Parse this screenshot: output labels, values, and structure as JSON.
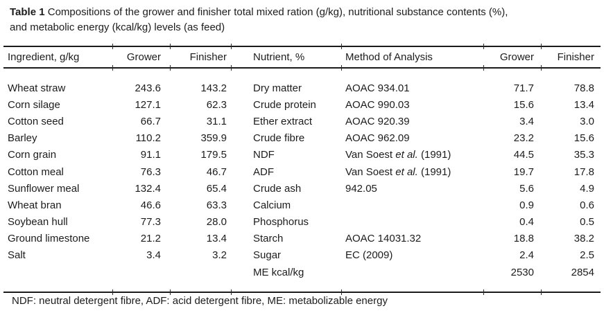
{
  "caption": {
    "label": "Table 1",
    "line1": "Compositions of the grower and finisher total mixed ration (g/kg), nutritional substance contents (%),",
    "line2": "and metabolic energy (kcal/kg) levels (as feed)"
  },
  "table": {
    "columns": [
      "Ingredient, g/kg",
      "Grower",
      "Finisher",
      "Nutrient, %",
      "Method of Analysis",
      "Grower",
      "Finisher"
    ],
    "column_keys": [
      "ingredient",
      "ingredient-grower",
      "ingredient-finisher",
      "nutrient",
      "method-of-analysis",
      "nutrient-grower",
      "nutrient-finisher"
    ],
    "rows": [
      [
        "Wheat straw",
        "243.6",
        "143.2",
        "Dry matter",
        "AOAC 934.01",
        "71.7",
        "78.8"
      ],
      [
        "Corn silage",
        "127.1",
        "62.3",
        "Crude protein",
        "AOAC 990.03",
        "15.6",
        "13.4"
      ],
      [
        "Cotton seed",
        "66.7",
        "31.1",
        "Ether extract",
        "AOAC 920.39",
        "3.4",
        "3.0"
      ],
      [
        "Barley",
        "110.2",
        "359.9",
        "Crude fibre",
        "AOAC 962.09",
        "23.2",
        "15.6"
      ],
      [
        "Corn grain",
        "91.1",
        "179.5",
        "NDF",
        "Van Soest *et al.* (1991)",
        "44.5",
        "35.3"
      ],
      [
        "Cotton meal",
        "76.3",
        "46.7",
        "ADF",
        "Van Soest *et al.* (1991)",
        "19.7",
        "17.8"
      ],
      [
        "Sunflower meal",
        "132.4",
        "65.4",
        "Crude ash",
        "942.05",
        "5.6",
        "4.9"
      ],
      [
        "Wheat bran",
        "46.6",
        "63.3",
        "Calcium",
        "",
        "0.9",
        "0.6"
      ],
      [
        "Soybean hull",
        "77.3",
        "28.0",
        "Phosphorus",
        "",
        "0.4",
        "0.5"
      ],
      [
        "Ground limestone",
        "21.2",
        "13.4",
        "Starch",
        "AOAC 14031.32",
        "18.8",
        "38.2"
      ],
      [
        "Salt",
        "3.4",
        "3.2",
        "Sugar",
        "EC (2009)",
        "2.4",
        "2.5"
      ],
      [
        "",
        "",
        "",
        "ME kcal/kg",
        "",
        "2530",
        "2854"
      ]
    ],
    "footnote": "NDF: neutral detergent fibre, ADF: acid detergent fibre, ME: metabolizable energy"
  }
}
